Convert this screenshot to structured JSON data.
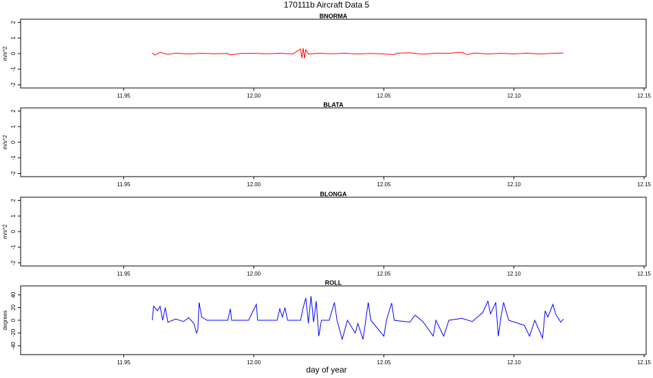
{
  "title": "170111b   Aircraft Data 5",
  "xlabel": "day of year",
  "chart_data": [
    {
      "type": "line",
      "title": "BNORMA",
      "ylabel": "m/s^2",
      "xlim": [
        11.9104,
        12.1508
      ],
      "xticks": [
        11.95,
        {
          "value": 12,
          "label": "12.00"
        },
        12.05,
        {
          "value": 12.1,
          "label": "12.10"
        },
        12.15
      ],
      "ylim": [
        -2.2,
        2.2
      ],
      "yticks": [
        -2,
        -1,
        0,
        1,
        2
      ],
      "x": [
        11.961,
        11.962,
        11.964,
        11.967,
        11.97,
        11.975,
        11.98,
        11.985,
        11.99,
        11.991,
        11.995,
        12.0,
        12.005,
        12.01,
        12.015,
        12.018,
        12.0185,
        12.019,
        12.0195,
        12.02,
        12.021,
        12.025,
        12.03,
        12.035,
        12.04,
        12.045,
        12.05,
        12.054,
        12.055,
        12.06,
        12.065,
        12.07,
        12.075,
        12.08,
        12.082,
        12.085,
        12.09,
        12.095,
        12.1,
        12.105,
        12.11,
        12.115,
        12.119
      ],
      "series": [
        {
          "name": "BNORMA",
          "color": "#ff0000",
          "values": [
            0.05,
            -0.1,
            0.08,
            -0.05,
            0.03,
            -0.02,
            0.02,
            -0.01,
            0.01,
            -0.08,
            0.01,
            0.02,
            -0.01,
            0.02,
            -0.02,
            0.3,
            -0.3,
            0.35,
            -0.3,
            0.25,
            -0.03,
            0.02,
            -0.01,
            0.02,
            -0.02,
            0.01,
            -0.03,
            -0.06,
            0.03,
            0.05,
            -0.04,
            0.03,
            0.02,
            0.08,
            -0.06,
            0.04,
            -0.03,
            0.02,
            -0.02,
            0.03,
            -0.03,
            0.02,
            0.04
          ]
        }
      ]
    },
    {
      "type": "line",
      "title": "BLATA",
      "ylabel": "m/s^2",
      "xlim": [
        11.9104,
        12.1508
      ],
      "xticks": [
        11.95,
        {
          "value": 12,
          "label": "12.00"
        },
        12.05,
        {
          "value": 12.1,
          "label": "12.10"
        },
        12.15
      ],
      "ylim": [
        -2.2,
        2.2
      ],
      "yticks": [
        -2,
        -1,
        0,
        1,
        2
      ]
    },
    {
      "type": "line",
      "title": "BLONGA",
      "ylabel": "m/s^2",
      "xlim": [
        11.9104,
        12.1508
      ],
      "xticks": [
        11.95,
        {
          "value": 12,
          "label": "12.00"
        },
        12.05,
        {
          "value": 12.1,
          "label": "12.10"
        },
        12.15
      ],
      "ylim": [
        -2.2,
        2.2
      ],
      "yticks": [
        -2,
        -1,
        0,
        1,
        2
      ]
    },
    {
      "type": "line",
      "title": "ROLL",
      "ylabel": "degrees",
      "xlim": [
        11.9104,
        12.1508
      ],
      "xticks": [
        11.95,
        {
          "value": 12,
          "label": "12.00"
        },
        12.05,
        {
          "value": 12.1,
          "label": "12.10"
        },
        12.15
      ],
      "ylim": [
        -54,
        54
      ],
      "yticks": [
        -40,
        -20,
        0,
        20,
        40
      ],
      "x": [
        11.961,
        11.9615,
        11.963,
        11.964,
        11.965,
        11.966,
        11.967,
        11.97,
        11.973,
        11.975,
        11.977,
        11.978,
        11.9785,
        11.979,
        11.98,
        11.982,
        11.99,
        11.991,
        11.9915,
        11.998,
        12.001,
        12.0015,
        12.009,
        12.01,
        12.011,
        12.012,
        12.013,
        12.018,
        12.019,
        12.02,
        12.021,
        12.022,
        12.023,
        12.024,
        12.025,
        12.026,
        12.029,
        12.031,
        12.032,
        12.034,
        12.036,
        12.039,
        12.04,
        12.042,
        12.044,
        12.045,
        12.05,
        12.051,
        12.053,
        12.054,
        12.06,
        12.062,
        12.065,
        12.069,
        12.07,
        12.073,
        12.075,
        12.08,
        12.084,
        12.088,
        12.09,
        12.091,
        12.093,
        12.094,
        12.095,
        12.096,
        12.098,
        12.104,
        12.106,
        12.108,
        12.111,
        12.112,
        12.113,
        12.115,
        12.116,
        12.118,
        12.119
      ],
      "series": [
        {
          "name": "ROLL",
          "color": "#0000ff",
          "values": [
            0,
            22,
            15,
            22,
            0,
            20,
            -3,
            2,
            -2,
            4,
            -5,
            -20,
            -15,
            28,
            5,
            0,
            0,
            18,
            0,
            0,
            25,
            0,
            0,
            18,
            5,
            20,
            0,
            0,
            20,
            35,
            -5,
            38,
            -3,
            30,
            -25,
            0,
            0,
            28,
            0,
            -30,
            0,
            -20,
            -5,
            -30,
            28,
            0,
            -25,
            0,
            27,
            0,
            -3,
            8,
            -2,
            -25,
            0,
            -25,
            0,
            3,
            -2,
            12,
            30,
            10,
            28,
            -25,
            5,
            28,
            0,
            -8,
            -25,
            0,
            -28,
            15,
            5,
            25,
            10,
            -3,
            2
          ]
        }
      ]
    }
  ]
}
